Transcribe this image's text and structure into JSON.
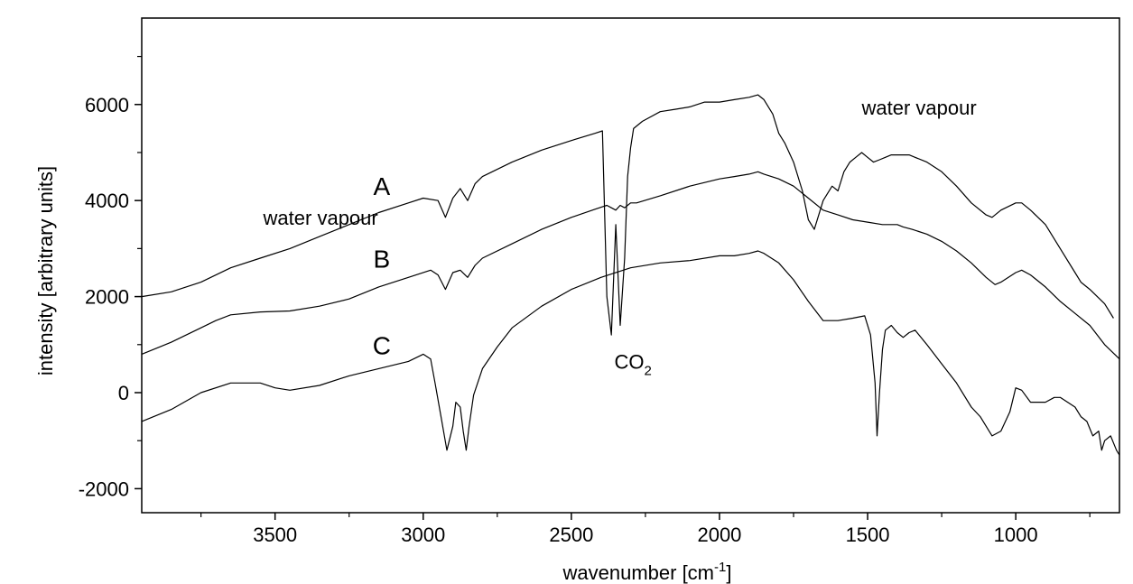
{
  "chart_data": {
    "type": "line",
    "xlabel_main": "wavenumber  [cm",
    "xlabel_sup": "-1",
    "xlabel_end": "]",
    "ylabel": "intensity [arbitrary units]",
    "xlim": [
      3950,
      650
    ],
    "ylim": [
      -2500,
      7800
    ],
    "x_ticks": [
      3500,
      3000,
      2500,
      2000,
      1500,
      1000
    ],
    "x_tick_labels": [
      "3500",
      "3000",
      "2500",
      "2000",
      "1500",
      "1000"
    ],
    "x_minor_ticks": [
      3750,
      3250,
      2750,
      2250,
      1750,
      1250,
      750
    ],
    "y_ticks": [
      -2000,
      0,
      2000,
      4000,
      6000
    ],
    "y_tick_labels": [
      "-2000",
      "0",
      "2000",
      "4000",
      "6000"
    ],
    "y_minor_ticks": [
      -1000,
      1000,
      3000,
      5000,
      7000
    ],
    "series": [
      {
        "name": "A",
        "x": [
          3950,
          3850,
          3750,
          3650,
          3550,
          3450,
          3350,
          3250,
          3150,
          3050,
          3000,
          2950,
          2925,
          2900,
          2875,
          2850,
          2825,
          2800,
          2700,
          2600,
          2500,
          2420,
          2395,
          2380,
          2365,
          2350,
          2335,
          2320,
          2310,
          2300,
          2290,
          2260,
          2200,
          2150,
          2100,
          2050,
          2000,
          1950,
          1900,
          1870,
          1850,
          1820,
          1800,
          1780,
          1750,
          1720,
          1700,
          1680,
          1650,
          1620,
          1600,
          1580,
          1560,
          1540,
          1520,
          1500,
          1480,
          1460,
          1440,
          1420,
          1400,
          1380,
          1360,
          1340,
          1300,
          1250,
          1200,
          1150,
          1100,
          1080,
          1050,
          1000,
          980,
          950,
          900,
          850,
          800,
          780,
          750,
          700,
          670
        ],
        "y": [
          2000,
          2100,
          2300,
          2600,
          2800,
          3000,
          3250,
          3500,
          3750,
          3950,
          4050,
          4000,
          3650,
          4050,
          4250,
          4000,
          4350,
          4500,
          4800,
          5050,
          5250,
          5400,
          5450,
          2000,
          1200,
          3500,
          1400,
          2800,
          4500,
          5100,
          5500,
          5650,
          5850,
          5900,
          5950,
          6050,
          6050,
          6100,
          6150,
          6200,
          6100,
          5800,
          5400,
          5200,
          4800,
          4200,
          3600,
          3400,
          4000,
          4300,
          4200,
          4600,
          4800,
          4900,
          5000,
          4900,
          4800,
          4850,
          4900,
          4950,
          4950,
          4950,
          4950,
          4900,
          4800,
          4600,
          4300,
          3950,
          3700,
          3650,
          3800,
          3950,
          3950,
          3800,
          3500,
          3000,
          2500,
          2300,
          2150,
          1850,
          1550
        ]
      },
      {
        "name": "B",
        "x": [
          3950,
          3850,
          3750,
          3700,
          3650,
          3550,
          3450,
          3350,
          3250,
          3150,
          3050,
          2975,
          2950,
          2925,
          2900,
          2875,
          2850,
          2825,
          2800,
          2700,
          2600,
          2500,
          2420,
          2395,
          2380,
          2365,
          2350,
          2335,
          2320,
          2310,
          2300,
          2280,
          2200,
          2100,
          2000,
          1950,
          1900,
          1870,
          1850,
          1800,
          1750,
          1700,
          1650,
          1600,
          1550,
          1500,
          1450,
          1400,
          1380,
          1350,
          1300,
          1250,
          1200,
          1150,
          1100,
          1070,
          1050,
          1000,
          980,
          950,
          900,
          850,
          800,
          750,
          700,
          650
        ],
        "y": [
          800,
          1050,
          1350,
          1500,
          1620,
          1680,
          1700,
          1800,
          1950,
          2200,
          2400,
          2550,
          2450,
          2150,
          2500,
          2550,
          2400,
          2650,
          2800,
          3100,
          3400,
          3650,
          3820,
          3870,
          3900,
          3850,
          3800,
          3900,
          3850,
          3900,
          3950,
          3950,
          4100,
          4300,
          4450,
          4500,
          4550,
          4600,
          4550,
          4450,
          4300,
          4050,
          3800,
          3700,
          3600,
          3550,
          3500,
          3500,
          3450,
          3400,
          3300,
          3150,
          2950,
          2700,
          2400,
          2250,
          2300,
          2500,
          2550,
          2450,
          2200,
          1900,
          1650,
          1400,
          1000,
          700
        ]
      },
      {
        "name": "C",
        "x": [
          3950,
          3850,
          3750,
          3650,
          3550,
          3500,
          3450,
          3350,
          3250,
          3150,
          3050,
          3000,
          2975,
          2960,
          2940,
          2920,
          2900,
          2890,
          2875,
          2865,
          2855,
          2845,
          2830,
          2800,
          2750,
          2700,
          2600,
          2500,
          2400,
          2300,
          2200,
          2100,
          2000,
          1950,
          1900,
          1870,
          1850,
          1800,
          1750,
          1700,
          1650,
          1600,
          1550,
          1510,
          1490,
          1475,
          1468,
          1460,
          1450,
          1440,
          1420,
          1400,
          1380,
          1360,
          1340,
          1300,
          1250,
          1200,
          1150,
          1120,
          1100,
          1080,
          1050,
          1020,
          1000,
          980,
          950,
          900,
          870,
          850,
          800,
          780,
          760,
          740,
          720,
          710,
          700,
          680,
          660,
          650
        ],
        "y": [
          -600,
          -350,
          0,
          200,
          200,
          100,
          50,
          150,
          350,
          500,
          650,
          800,
          700,
          200,
          -500,
          -1200,
          -700,
          -200,
          -300,
          -800,
          -1200,
          -700,
          -50,
          500,
          950,
          1350,
          1800,
          2150,
          2400,
          2600,
          2700,
          2750,
          2850,
          2850,
          2900,
          2950,
          2900,
          2700,
          2350,
          1900,
          1500,
          1500,
          1550,
          1600,
          1200,
          200,
          -900,
          0,
          900,
          1300,
          1400,
          1250,
          1150,
          1250,
          1300,
          1000,
          600,
          200,
          -300,
          -500,
          -700,
          -900,
          -800,
          -400,
          100,
          50,
          -200,
          -200,
          -100,
          -100,
          -300,
          -500,
          -600,
          -900,
          -800,
          -1200,
          -1000,
          -900,
          -1200,
          -1300
        ]
      }
    ],
    "series_labels": [
      {
        "text": "A",
        "x": 3140,
        "y": 4120
      },
      {
        "text": "B",
        "x": 3140,
        "y": 2600
      },
      {
        "text": "C",
        "x": 3140,
        "y": 800
      }
    ],
    "annotations": [
      {
        "text": "water vapour",
        "x": 3540,
        "y": 3500
      },
      {
        "text": "water vapour",
        "x": 1520,
        "y": 5790
      },
      {
        "text": "CO",
        "sub": "2",
        "x": 2355,
        "y": 500
      }
    ],
    "grid": false,
    "legend": "none"
  }
}
